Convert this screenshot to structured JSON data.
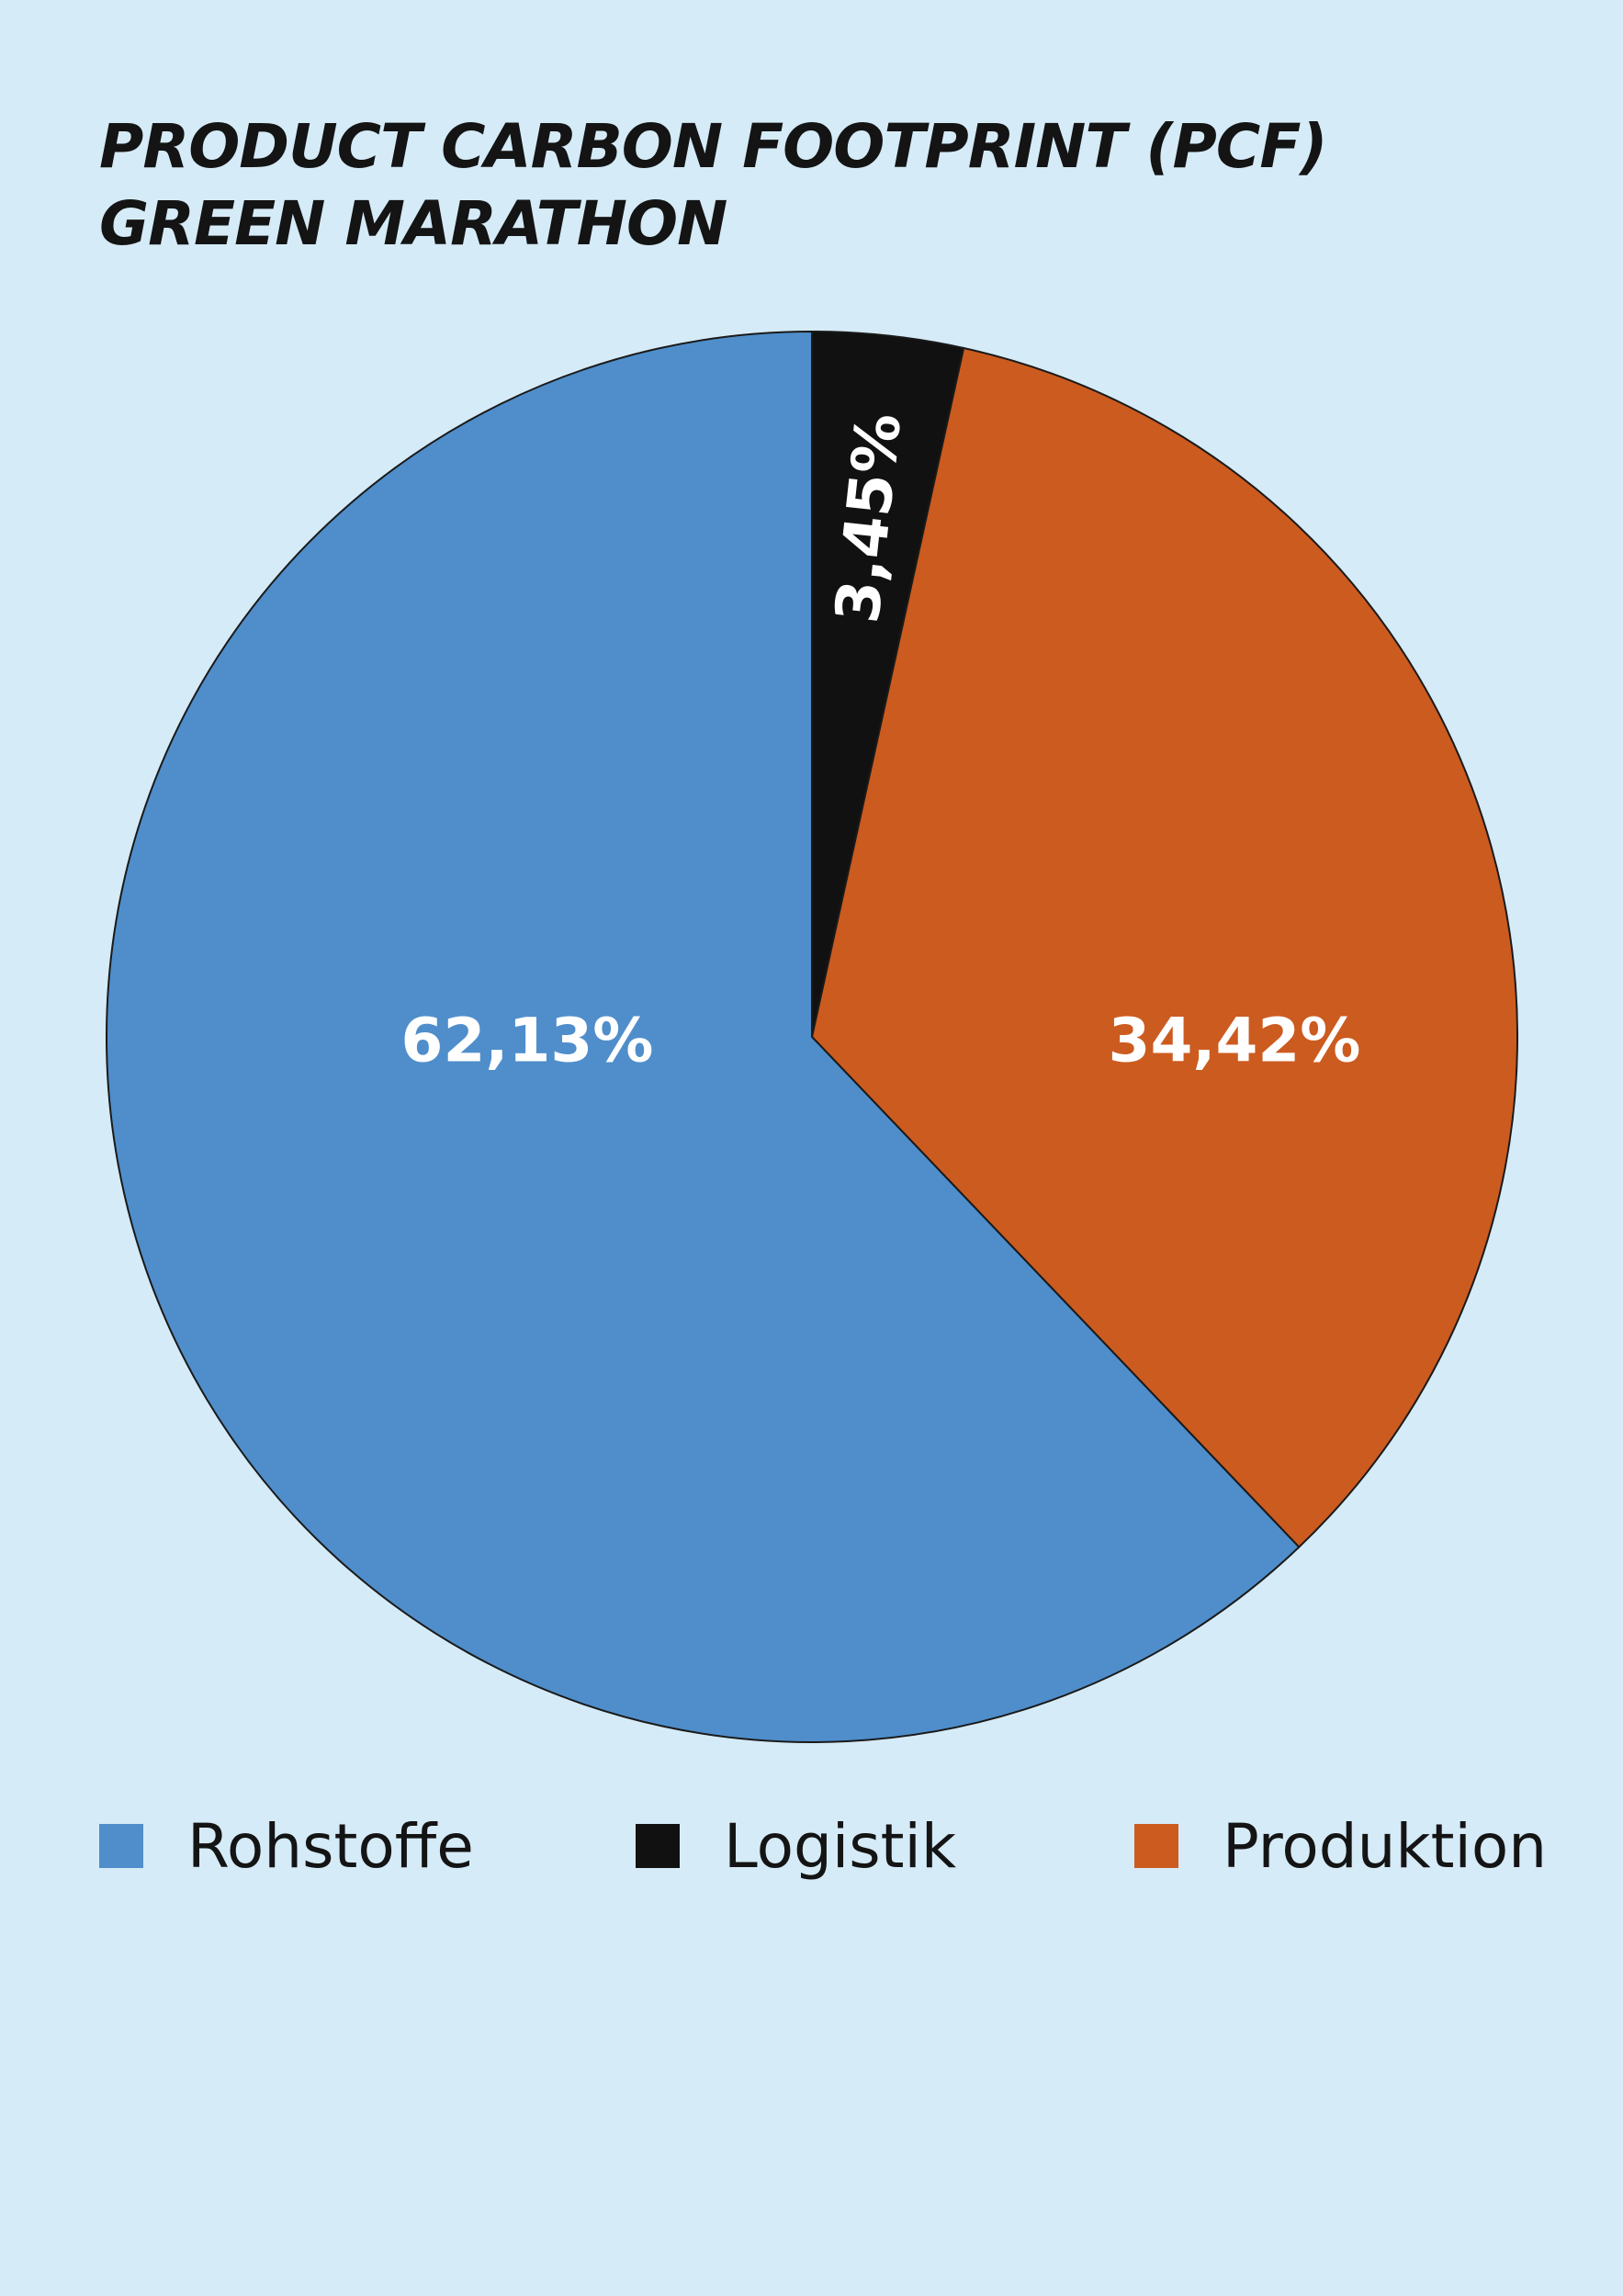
{
  "title": {
    "line1": "PRODUCT CARBON FOOTPRINT (PCF)",
    "line2": "GREEN MARATHON"
  },
  "chart_data": {
    "type": "pie",
    "title": "PRODUCT CARBON FOOTPRINT (PCF) GREEN MARATHON",
    "legend_position": "bottom",
    "slices": [
      {
        "name": "Logistik",
        "value": 3.45,
        "label": "3,45%",
        "color": "#111111"
      },
      {
        "name": "Produktion",
        "value": 34.42,
        "label": "34,42%",
        "color": "#cc5b1f"
      },
      {
        "name": "Rohstoffe",
        "value": 62.13,
        "label": "62,13%",
        "color": "#4f8ecb"
      }
    ]
  },
  "legend": {
    "items": [
      {
        "label": "Rohstoffe",
        "color": "#4f8ecb"
      },
      {
        "label": "Logistik",
        "color": "#111111"
      },
      {
        "label": "Produktion",
        "color": "#cc5b1f"
      }
    ]
  },
  "colors": {
    "background": "#d5ebf7",
    "outline": "#1a1a1a",
    "slice_label": "#ffffff"
  }
}
